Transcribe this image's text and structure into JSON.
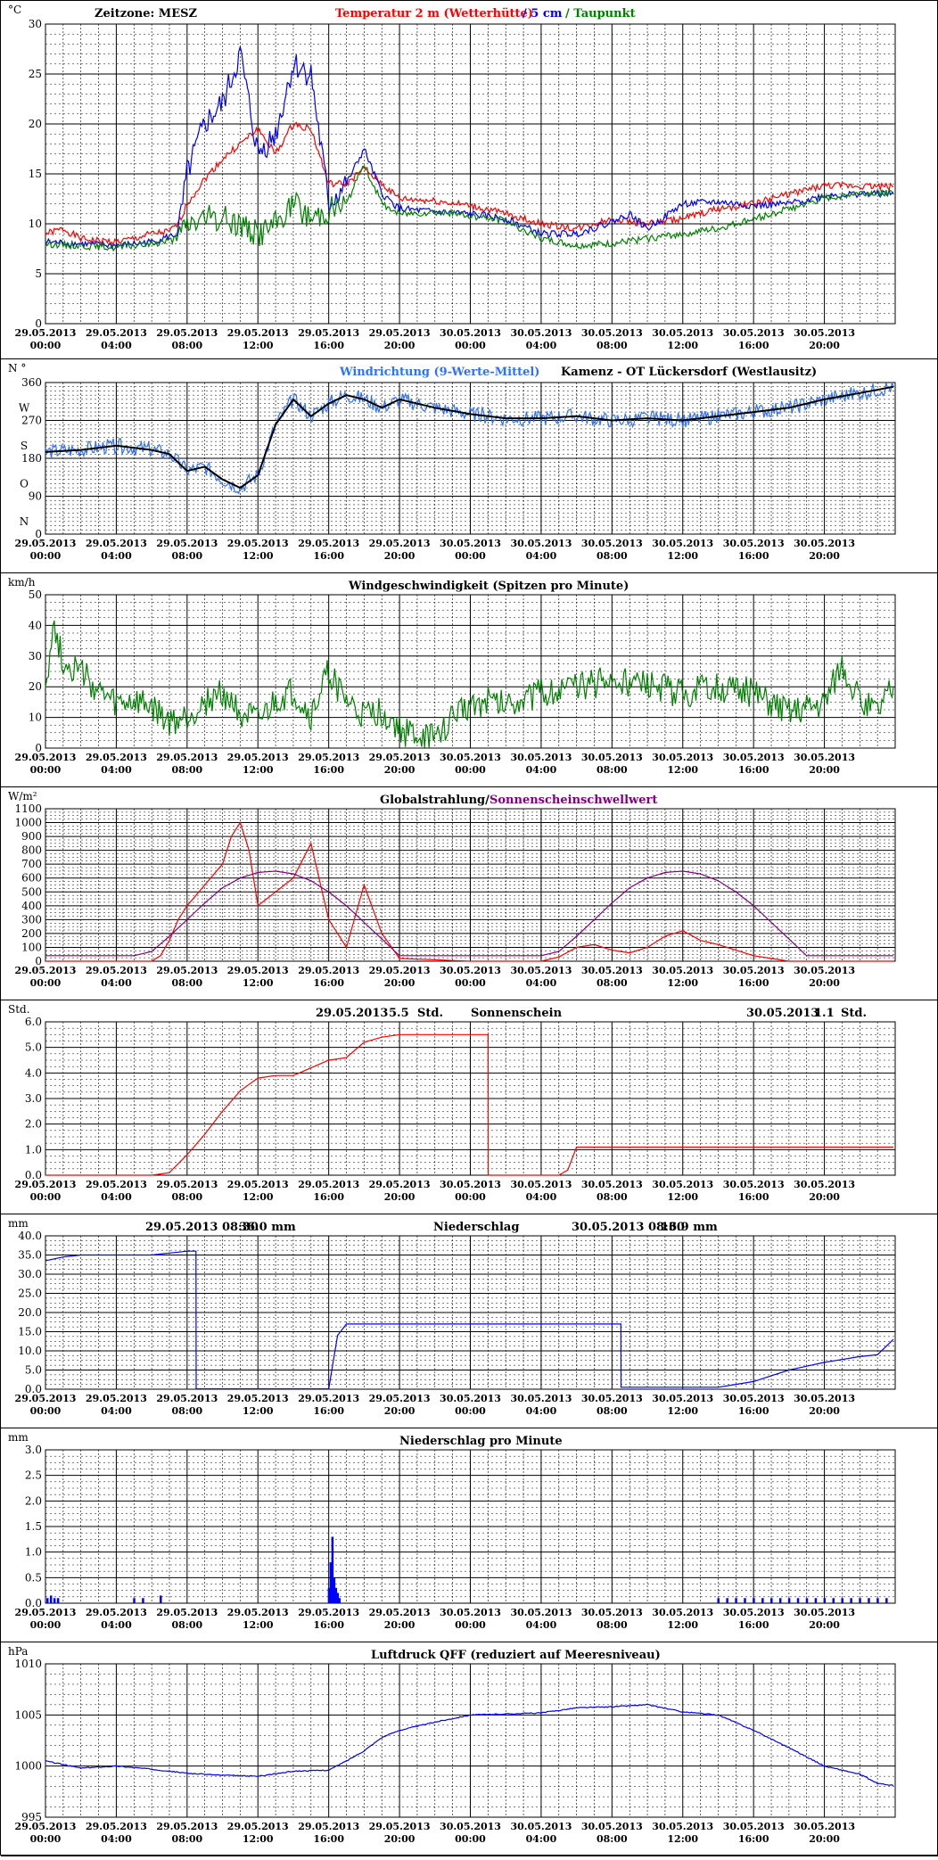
{
  "x_labels": [
    [
      "29.05.2013",
      "00:00"
    ],
    [
      "29.05.2013",
      "04:00"
    ],
    [
      "29.05.2013",
      "08:00"
    ],
    [
      "29.05.2013",
      "12:00"
    ],
    [
      "29.05.2013",
      "16:00"
    ],
    [
      "29.05.2013",
      "20:00"
    ],
    [
      "30.05.2013",
      "00:00"
    ],
    [
      "30.05.2013",
      "04:00"
    ],
    [
      "30.05.2013",
      "08:00"
    ],
    [
      "30.05.2013",
      "12:00"
    ],
    [
      "30.05.2013",
      "16:00"
    ],
    [
      "30.05.2013",
      "20:00"
    ]
  ],
  "panels": [
    {
      "id": "temperature",
      "unit": "°C",
      "title_parts": [
        {
          "text": "Zeitzone: MESZ",
          "color": "#000000"
        },
        {
          "text": "Temperatur 2 m (Wetterhütte)",
          "color": "#ff0000"
        },
        {
          "text": "/  5 cm",
          "color": "#0000ff"
        },
        {
          "text": "/ Taupunkt",
          "color": "#008000"
        }
      ],
      "y_ticks": [
        "0",
        "5",
        "10",
        "15",
        "20",
        "25",
        "30"
      ]
    },
    {
      "id": "wind-direction",
      "unit": "N °",
      "title_parts": [
        {
          "text": "Windrichtung (9-Werte-Mittel)",
          "color": "#3070ff"
        },
        {
          "text": "Kamenz - OT Lückersdorf (Westlausitz)",
          "color": "#000000"
        }
      ],
      "y_ticks": [
        "0",
        "90",
        "180",
        "270",
        "360"
      ],
      "y_compass": [
        "N",
        "O",
        "S",
        "W"
      ]
    },
    {
      "id": "wind-speed",
      "unit": "km/h",
      "title_parts": [
        {
          "text": "Windgeschwindigkeit (Spitzen pro Minute)",
          "color": "#000000"
        }
      ],
      "y_ticks": [
        "0",
        "10",
        "20",
        "30",
        "40",
        "50"
      ]
    },
    {
      "id": "radiation",
      "unit": "W/m²",
      "title_parts": [
        {
          "text": "Globalstrahlung/",
          "color": "#000000"
        },
        {
          "text": "Sonnenscheinschwellwert",
          "color": "#800080"
        }
      ],
      "y_ticks": [
        "0",
        "100",
        "200",
        "300",
        "400",
        "500",
        "600",
        "700",
        "800",
        "900",
        "1000",
        "1100"
      ]
    },
    {
      "id": "sunshine",
      "unit": "Std.",
      "title_parts": [
        {
          "text": "29.05.2013",
          "color": "#000000"
        },
        {
          "text": "5.5",
          "color": "#000000"
        },
        {
          "text": "Std.",
          "color": "#000000"
        },
        {
          "text": "Sonnenschein",
          "color": "#000000"
        },
        {
          "text": "30.05.2013",
          "color": "#000000"
        },
        {
          "text": "1.1",
          "color": "#000000"
        },
        {
          "text": "Std.",
          "color": "#000000"
        }
      ],
      "y_ticks": [
        "0.0",
        "1.0",
        "2.0",
        "3.0",
        "4.0",
        "5.0",
        "6.0"
      ]
    },
    {
      "id": "precip",
      "unit": "mm",
      "title_parts": [
        {
          "text": "29.05.2013 08:30",
          "color": "#000000"
        },
        {
          "text": "36.0   mm",
          "color": "#000000"
        },
        {
          "text": "Niederschlag",
          "color": "#000000"
        },
        {
          "text": "30.05.2013 08:30",
          "color": "#000000"
        },
        {
          "text": "16.9   mm",
          "color": "#000000"
        }
      ],
      "y_ticks": [
        "0.0",
        "5.0",
        "10.0",
        "15.0",
        "20.0",
        "25.0",
        "30.0",
        "35.0",
        "40.0"
      ]
    },
    {
      "id": "precip-minute",
      "unit": "mm",
      "title_parts": [
        {
          "text": "Niederschlag pro Minute",
          "color": "#000000"
        }
      ],
      "y_ticks": [
        "0.0",
        "0.5",
        "1.0",
        "1.5",
        "2.0",
        "2.5",
        "3.0"
      ]
    },
    {
      "id": "pressure",
      "unit": "hPa",
      "title_parts": [
        {
          "text": "Luftdruck QFF (reduziert auf Meeresniveau)",
          "color": "#000000"
        }
      ],
      "y_ticks": [
        "995",
        "1000",
        "1005",
        "1010"
      ]
    }
  ],
  "chart_data": [
    {
      "type": "line",
      "x_unit": "hours since 29.05.2013 00:00",
      "ylim": [
        0,
        30
      ],
      "series": [
        {
          "name": "Temperatur 2 m (Wetterhütte)",
          "color": "#ff0000",
          "x": [
            0,
            1,
            2,
            3,
            4,
            5,
            6,
            7,
            7.5,
            8,
            9,
            10,
            11,
            12,
            13,
            14,
            15,
            16,
            17,
            18,
            19,
            20,
            22,
            24,
            26,
            28,
            30,
            32,
            34,
            36,
            38,
            40,
            42,
            44,
            46,
            47.9
          ],
          "y": [
            9.0,
            9.5,
            8.5,
            8.3,
            8.2,
            8.5,
            9.0,
            9.2,
            10,
            12,
            14.5,
            16.5,
            18,
            19.5,
            17,
            20,
            19.5,
            14,
            14,
            15.5,
            14,
            12.5,
            12.3,
            11.8,
            11,
            10,
            9.5,
            10.5,
            10,
            10.5,
            11.5,
            12,
            13,
            13.8,
            13.8,
            13.7
          ]
        },
        {
          "name": "5 cm",
          "color": "#0000ff",
          "x": [
            0,
            2,
            4,
            6,
            7.5,
            8,
            9,
            10,
            11,
            12,
            13,
            14,
            15,
            16,
            17,
            18,
            19,
            20,
            22,
            24,
            26,
            28,
            30,
            32,
            33,
            34,
            36,
            38,
            40,
            42,
            44,
            46,
            47.9
          ],
          "y": [
            8.2,
            8.0,
            7.8,
            8.2,
            9,
            15,
            20,
            22,
            27,
            17,
            19,
            26,
            25,
            12,
            14,
            17.5,
            13,
            11.5,
            11.2,
            11,
            10.5,
            9,
            9,
            10.2,
            11,
            9.5,
            12,
            12.2,
            11.8,
            12,
            12.8,
            13,
            13
          ]
        },
        {
          "name": "Taupunkt",
          "color": "#008000",
          "x": [
            0,
            2,
            4,
            6,
            7.5,
            8,
            9,
            10,
            11,
            12,
            13,
            14,
            15,
            16,
            17,
            18,
            19,
            20,
            22,
            24,
            26,
            28,
            30,
            32,
            34,
            36,
            38,
            40,
            42,
            44,
            46,
            47.9
          ],
          "y": [
            8.0,
            7.8,
            7.6,
            8.0,
            8.5,
            10,
            10.5,
            10.5,
            10,
            9,
            10,
            12,
            10.5,
            11.5,
            12,
            16,
            12,
            11,
            11.2,
            10.8,
            10.3,
            8.5,
            7.8,
            8.0,
            8.5,
            9.0,
            9.5,
            10.5,
            11.5,
            12.5,
            13.1,
            13.1
          ]
        }
      ]
    },
    {
      "type": "line",
      "ylim": [
        0,
        360
      ],
      "series": [
        {
          "name": "Windrichtung (9-Werte-Mittel)",
          "color": "#3070ff",
          "x": [
            0,
            2,
            4,
            6,
            7,
            8,
            9,
            10,
            11,
            12,
            13,
            14,
            15,
            16,
            17,
            18,
            19,
            20,
            22,
            24,
            26,
            28,
            30,
            32,
            34,
            36,
            38,
            40,
            42,
            44,
            46,
            47.9
          ],
          "y": [
            195,
            200,
            210,
            200,
            190,
            150,
            160,
            130,
            110,
            140,
            260,
            320,
            280,
            310,
            330,
            320,
            300,
            320,
            300,
            285,
            275,
            275,
            280,
            270,
            275,
            270,
            280,
            290,
            300,
            320,
            335,
            350
          ]
        }
      ]
    },
    {
      "type": "line",
      "ylim": [
        0,
        50
      ],
      "series": [
        {
          "name": "Windgeschwindigkeit (Spitzen pro Minute)",
          "color": "#008000",
          "x": [
            0,
            0.5,
            1,
            2,
            3,
            4,
            5,
            6,
            7,
            8,
            9,
            10,
            11,
            12,
            13,
            14,
            15,
            16,
            17,
            18,
            19,
            20,
            21,
            22,
            23,
            24,
            26,
            28,
            30,
            32,
            34,
            36,
            38,
            40,
            42,
            44,
            45,
            46,
            47,
            47.9
          ],
          "y": [
            22,
            40,
            28,
            25,
            18,
            14,
            15,
            13,
            8,
            10,
            15,
            18,
            12,
            8,
            15,
            18,
            10,
            25,
            15,
            10,
            12,
            6,
            4,
            3,
            10,
            15,
            15,
            18,
            20,
            22,
            20,
            18,
            20,
            18,
            12,
            15,
            28,
            15,
            12,
            20
          ]
        }
      ]
    },
    {
      "type": "line",
      "ylim": [
        0,
        1100
      ],
      "series": [
        {
          "name": "Globalstrahlung",
          "color": "#ff0000",
          "x": [
            0,
            5,
            6,
            6.5,
            7,
            7.5,
            8,
            9,
            10,
            10.5,
            11,
            11.5,
            12,
            13,
            14,
            15,
            16,
            17,
            18,
            19,
            20,
            24,
            28,
            29,
            30,
            31,
            32,
            33,
            34,
            35,
            36,
            37,
            38,
            39,
            40,
            42,
            47.9
          ],
          "y": [
            0,
            0,
            0,
            40,
            150,
            300,
            400,
            550,
            700,
            900,
            1000,
            800,
            400,
            500,
            600,
            850,
            300,
            100,
            550,
            200,
            20,
            0,
            0,
            30,
            100,
            120,
            80,
            60,
            100,
            180,
            220,
            150,
            120,
            80,
            40,
            0,
            0
          ]
        },
        {
          "name": "Sonnenscheinschwellwert",
          "color": "#800080",
          "x": [
            0,
            5,
            6,
            7,
            8,
            9,
            10,
            11,
            12,
            13,
            14,
            15,
            16,
            17,
            18,
            19,
            20,
            24,
            28,
            29,
            30,
            31,
            32,
            33,
            34,
            35,
            36,
            37,
            38,
            39,
            40,
            41,
            42,
            43,
            47.9
          ],
          "y": [
            40,
            40,
            70,
            180,
            300,
            420,
            530,
            600,
            640,
            650,
            630,
            580,
            500,
            400,
            280,
            160,
            40,
            40,
            40,
            70,
            180,
            300,
            420,
            530,
            600,
            640,
            650,
            630,
            580,
            500,
            400,
            280,
            160,
            40,
            40
          ]
        }
      ]
    },
    {
      "type": "line",
      "ylim": [
        0,
        6
      ],
      "series": [
        {
          "name": "Sonnenschein",
          "color": "#ff0000",
          "x": [
            0,
            6,
            7,
            8,
            9,
            10,
            11,
            12,
            13,
            14,
            15,
            16,
            17,
            18,
            19,
            20,
            24,
            25,
            25.01,
            29,
            29.5,
            30,
            47.9
          ],
          "y": [
            0,
            0,
            0.1,
            0.8,
            1.6,
            2.5,
            3.3,
            3.8,
            3.9,
            3.9,
            4.2,
            4.5,
            4.6,
            5.2,
            5.4,
            5.5,
            5.5,
            5.5,
            0,
            0,
            0.2,
            1.1,
            1.1
          ]
        }
      ]
    },
    {
      "type": "line",
      "ylim": [
        0,
        40
      ],
      "series": [
        {
          "name": "Niederschlag",
          "color": "#0000ff",
          "x": [
            0,
            1,
            2,
            6,
            7,
            8,
            8.5,
            8.51,
            16,
            16.5,
            17,
            18,
            20,
            24,
            30,
            32,
            32.5,
            32.51,
            38,
            40,
            42,
            44,
            46,
            47,
            47.9
          ],
          "y": [
            33.5,
            34.5,
            35,
            35,
            35.5,
            36,
            36,
            0.1,
            0.1,
            14,
            17,
            17,
            17,
            17,
            17,
            17,
            17,
            0.5,
            0.5,
            2,
            5,
            7,
            8.5,
            9,
            13
          ]
        }
      ]
    },
    {
      "type": "bar",
      "ylim": [
        0,
        3
      ],
      "series": [
        {
          "name": "Niederschlag pro Minute",
          "color": "#0000ff",
          "x": [
            0.1,
            0.3,
            0.5,
            0.7,
            5,
            5.5,
            6.5,
            16.0,
            16.1,
            16.2,
            16.3,
            16.4,
            16.5,
            16.6,
            38,
            38.5,
            39,
            39.5,
            40,
            40.5,
            41,
            41.5,
            42,
            42.5,
            43,
            43.5,
            44,
            44.5,
            45,
            45.5,
            46,
            46.5,
            47,
            47.5
          ],
          "y": [
            0.1,
            0.15,
            0.1,
            0.1,
            0.1,
            0.1,
            0.15,
            0.3,
            0.8,
            1.3,
            0.5,
            0.3,
            0.2,
            0.1,
            0.1,
            0.1,
            0.1,
            0.1,
            0.1,
            0.1,
            0.1,
            0.1,
            0.1,
            0.1,
            0.1,
            0.1,
            0.1,
            0.1,
            0.1,
            0.1,
            0.1,
            0.1,
            0.1,
            0.1
          ]
        }
      ]
    },
    {
      "type": "line",
      "ylim": [
        995,
        1010
      ],
      "series": [
        {
          "name": "Luftdruck QFF",
          "color": "#0000ff",
          "x": [
            0,
            2,
            4,
            6,
            8,
            10,
            12,
            14,
            16,
            17,
            18,
            19,
            20,
            22,
            24,
            26,
            28,
            30,
            32,
            34,
            36,
            38,
            40,
            42,
            44,
            46,
            47,
            47.9
          ],
          "y": [
            1000.5,
            999.8,
            1000,
            999.7,
            999.3,
            999.1,
            999,
            999.5,
            999.6,
            1000.5,
            1001.5,
            1002.8,
            1003.5,
            1004.3,
            1005.0,
            1005.1,
            1005.2,
            1005.7,
            1005.8,
            1006.0,
            1005.3,
            1005.0,
            1003.5,
            1001.8,
            1000.0,
            999.2,
            998.3,
            998.1
          ]
        }
      ]
    }
  ]
}
